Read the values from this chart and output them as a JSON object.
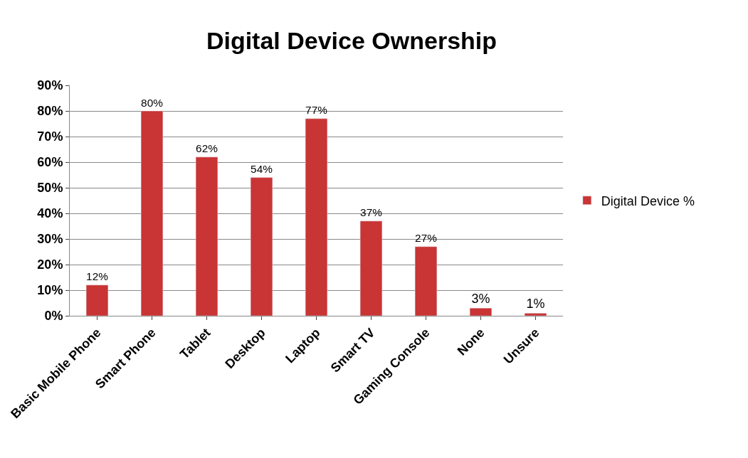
{
  "chart_data": {
    "type": "bar",
    "title": "Digital Device Ownership",
    "categories": [
      "Basic Mobile Phone",
      "Smart Phone",
      "Tablet",
      "Desktop",
      "Laptop",
      "Smart TV",
      "Gaming Console",
      "None",
      "Unsure"
    ],
    "series": [
      {
        "name": "Digital Device %",
        "color": "#c93434",
        "values": [
          12,
          80,
          62,
          54,
          77,
          37,
          27,
          3,
          1
        ],
        "value_labels": [
          "12%",
          "80%",
          "62%",
          "54%",
          "77%",
          "37%",
          "27%",
          "3%",
          "1%"
        ]
      }
    ],
    "ylim": [
      0,
      90
    ],
    "yticks": [
      {
        "value": 0,
        "label": "0%"
      },
      {
        "value": 10,
        "label": "10%"
      },
      {
        "value": 20,
        "label": "20%"
      },
      {
        "value": 30,
        "label": "30%"
      },
      {
        "value": 40,
        "label": "40%"
      },
      {
        "value": 50,
        "label": "50%"
      },
      {
        "value": 60,
        "label": "60%"
      },
      {
        "value": 70,
        "label": "70%"
      },
      {
        "value": 80,
        "label": "80%"
      },
      {
        "value": 90,
        "label": "90%"
      }
    ],
    "grid": "y",
    "legend": "right"
  }
}
